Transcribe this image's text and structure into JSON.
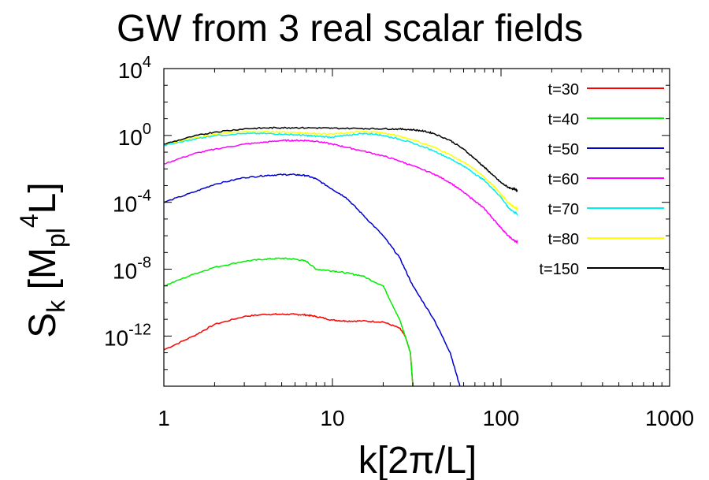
{
  "chart_data": {
    "type": "line",
    "title": "GW from  3 real scalar fields",
    "xlabel": "k[2π/L]",
    "ylabel": {
      "base": "S",
      "sub1": "k",
      "mid": " [M",
      "sub2": "pl",
      "sup": "4",
      "end": "L]"
    },
    "x_scale": "log",
    "y_scale": "log",
    "xlim": [
      1,
      1000
    ],
    "ylim": [
      1e-15,
      10000.0
    ],
    "x_ticks": [
      {
        "value": 1,
        "label": "1"
      },
      {
        "value": 10,
        "label": "10"
      },
      {
        "value": 100,
        "label": "100"
      },
      {
        "value": 1000,
        "label": "1000"
      }
    ],
    "y_ticks": [
      {
        "value": 10000.0,
        "base": "10",
        "exp": "4"
      },
      {
        "value": 1,
        "base": "10",
        "exp": "0"
      },
      {
        "value": 0.0001,
        "base": "10",
        "exp": "-4"
      },
      {
        "value": 1e-08,
        "base": "10",
        "exp": "-8"
      },
      {
        "value": 1e-12,
        "base": "10",
        "exp": "-12"
      }
    ],
    "legend_position": "top-right",
    "series": [
      {
        "name": "t=30",
        "color": "#ff0000",
        "x": [
          1,
          1.5,
          2,
          3,
          4,
          5,
          6,
          7,
          8,
          10,
          12,
          15,
          20,
          25,
          27,
          29,
          30
        ],
        "y": [
          1.5e-13,
          1e-12,
          5e-12,
          1.5e-11,
          2e-11,
          2e-11,
          2e-11,
          1.8e-11,
          1.5e-11,
          9e-12,
          8e-12,
          8e-12,
          7e-12,
          3e-12,
          1e-12,
          1e-13,
          1e-15
        ]
      },
      {
        "name": "t=40",
        "color": "#00ee00",
        "x": [
          1,
          1.5,
          2,
          3,
          4,
          5,
          6,
          7,
          8,
          10,
          12,
          15,
          20,
          25,
          27,
          29,
          30
        ],
        "y": [
          1e-09,
          5e-09,
          1.3e-08,
          3e-08,
          4e-08,
          4.5e-08,
          4e-08,
          3e-08,
          1e-08,
          8e-09,
          6e-09,
          4e-09,
          1e-09,
          1e-11,
          1e-12,
          1e-13,
          1e-15
        ]
      },
      {
        "name": "t=50",
        "color": "#0000cc",
        "x": [
          1,
          1.5,
          2,
          3,
          4,
          5,
          6,
          7,
          8,
          10,
          12,
          15,
          20,
          25,
          30,
          40,
          50,
          57
        ],
        "y": [
          0.0001,
          0.0004,
          0.0012,
          0.003,
          0.004,
          0.0045,
          0.0045,
          0.004,
          0.0025,
          0.0006,
          0.0002,
          2e-05,
          1e-06,
          5e-08,
          1e-09,
          1e-11,
          1e-13,
          1e-15
        ]
      },
      {
        "name": "t=60",
        "color": "#ff00ff",
        "x": [
          1,
          1.5,
          2,
          3,
          4,
          5,
          6,
          7,
          8,
          10,
          12,
          15,
          20,
          25,
          30,
          40,
          50,
          60,
          70,
          80,
          90,
          100,
          110,
          120,
          125
        ],
        "y": [
          0.02,
          0.08,
          0.15,
          0.3,
          0.4,
          0.5,
          0.5,
          0.5,
          0.45,
          0.3,
          0.2,
          0.12,
          0.06,
          0.03,
          0.015,
          0.005,
          0.0015,
          0.0004,
          0.00012,
          4e-05,
          1e-05,
          3e-06,
          1e-06,
          5e-07,
          4e-07
        ]
      },
      {
        "name": "t=70",
        "color": "#00eeee",
        "x": [
          1,
          1.5,
          2,
          3,
          4,
          5,
          6,
          7,
          8,
          10,
          12,
          15,
          18,
          20,
          25,
          30,
          40,
          50,
          60,
          70,
          80,
          90,
          100,
          110,
          120,
          125
        ],
        "y": [
          0.25,
          0.6,
          1.0,
          1.3,
          1.3,
          1.2,
          1.1,
          1.0,
          0.9,
          0.8,
          1.0,
          1.3,
          1.2,
          1.0,
          0.6,
          0.35,
          0.12,
          0.04,
          0.015,
          0.005,
          0.002,
          0.0006,
          0.0002,
          5e-05,
          2.5e-05,
          2e-05
        ]
      },
      {
        "name": "t=80",
        "color": "#ffff00",
        "x": [
          1,
          1.5,
          2,
          3,
          4,
          5,
          6,
          7,
          8,
          10,
          12,
          15,
          18,
          20,
          25,
          30,
          40,
          50,
          60,
          70,
          80,
          90,
          100,
          110,
          120,
          125
        ],
        "y": [
          0.3,
          0.7,
          1.2,
          1.7,
          1.7,
          1.6,
          1.5,
          1.4,
          1.3,
          1.2,
          1.4,
          1.7,
          1.6,
          1.4,
          0.9,
          0.55,
          0.2,
          0.07,
          0.025,
          0.009,
          0.003,
          0.001,
          0.0003,
          0.0001,
          5e-05,
          4e-05
        ]
      },
      {
        "name": "t=150",
        "color": "#000000",
        "x": [
          1,
          1.5,
          2,
          3,
          4,
          5,
          6,
          8,
          10,
          15,
          20,
          25,
          30,
          35,
          40,
          50,
          60,
          70,
          80,
          90,
          100,
          110,
          120,
          125
        ],
        "y": [
          0.3,
          0.9,
          1.6,
          2.5,
          2.8,
          2.9,
          2.9,
          2.8,
          2.7,
          2.6,
          2.5,
          2.4,
          2.2,
          1.8,
          1.3,
          0.5,
          0.15,
          0.04,
          0.012,
          0.004,
          0.0015,
          0.0008,
          0.0006,
          0.0005
        ]
      }
    ]
  }
}
